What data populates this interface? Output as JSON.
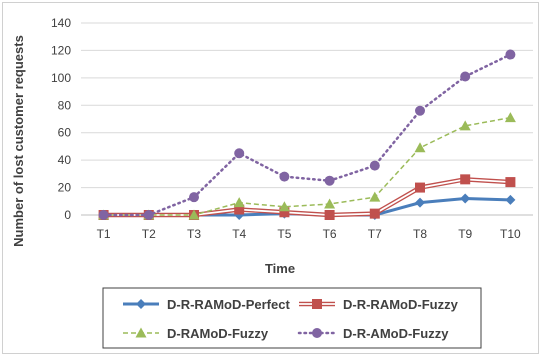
{
  "chart_data": {
    "type": "line",
    "title": "",
    "xlabel": "Time",
    "ylabel": "Number of lost customer requests",
    "ylim": [
      0,
      140
    ],
    "yticks": [
      0,
      20,
      40,
      60,
      80,
      100,
      120,
      140
    ],
    "categories": [
      "T1",
      "T2",
      "T3",
      "T4",
      "T5",
      "T6",
      "T7",
      "T8",
      "T9",
      "T10"
    ],
    "grid": "horizontal",
    "legend": "bottom",
    "series": [
      {
        "name": "D-R-RAMoD-Perfect",
        "color": "#4a7ebb",
        "marker": "diamond",
        "dash": "solid",
        "values": [
          0,
          0,
          0,
          0,
          1,
          0,
          0,
          9,
          12,
          11
        ]
      },
      {
        "name": "D-R-RAMoD-Fuzzy",
        "color": "#c0504d",
        "marker": "square",
        "dash": "double",
        "values": [
          0,
          0,
          0,
          4,
          2,
          0,
          1,
          20,
          26,
          24
        ]
      },
      {
        "name": "D-RAMoD-Fuzzy",
        "color": "#9bbb59",
        "marker": "triangle",
        "dash": "dashed",
        "values": [
          0,
          0,
          0,
          9,
          6,
          8,
          13,
          49,
          65,
          71
        ]
      },
      {
        "name": "D-R-AMoD-Fuzzy",
        "color": "#8064a2",
        "marker": "circle",
        "dash": "dotted",
        "values": [
          0,
          0,
          13,
          45,
          28,
          25,
          36,
          76,
          101,
          117
        ]
      }
    ]
  }
}
